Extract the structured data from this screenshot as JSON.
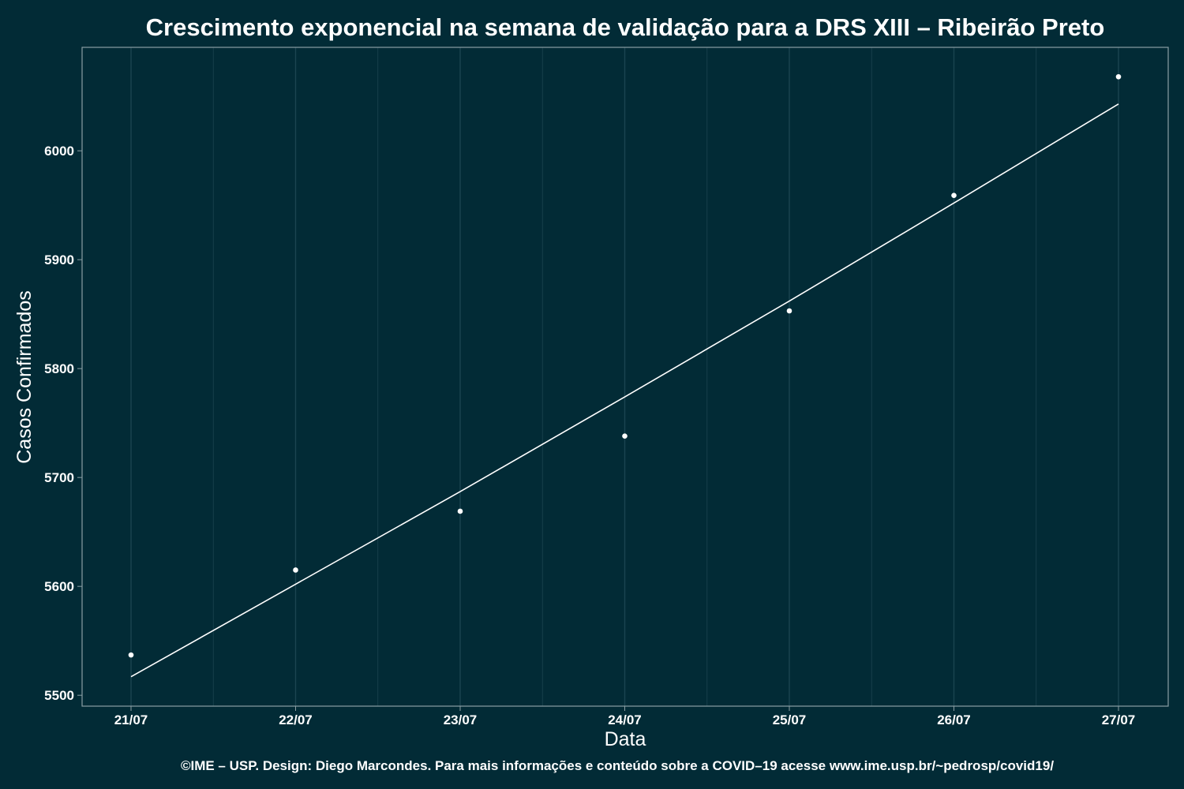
{
  "chart_data": {
    "type": "scatter",
    "title": "Crescimento exponencial na semana de validação para a DRS XIII – Ribeirão Preto",
    "xlabel": "Data",
    "ylabel": "Casos Confirmados",
    "caption": "©IME – USP. Design: Diego Marcondes. Para mais informações e conteúdo sobre a COVID–19 acesse www.ime.usp.br/~pedrosp/covid19/",
    "categories": [
      "21/07",
      "22/07",
      "23/07",
      "24/07",
      "25/07",
      "26/07",
      "27/07"
    ],
    "y_ticks": [
      5500,
      5600,
      5700,
      5800,
      5900,
      6000
    ],
    "ylim": [
      5490,
      6095
    ],
    "grid": true,
    "series": [
      {
        "values": [
          5537,
          5615,
          5669,
          5738,
          5853,
          5959,
          6068
        ],
        "style": "points"
      },
      {
        "values": [
          5517,
          5602,
          5687,
          5774,
          5862,
          5952,
          6043
        ],
        "style": "line"
      }
    ],
    "colors": {
      "background": "#022b36",
      "grid": "#1b4450",
      "frame": "#8a9ea3",
      "marks": "#ffffff"
    }
  }
}
